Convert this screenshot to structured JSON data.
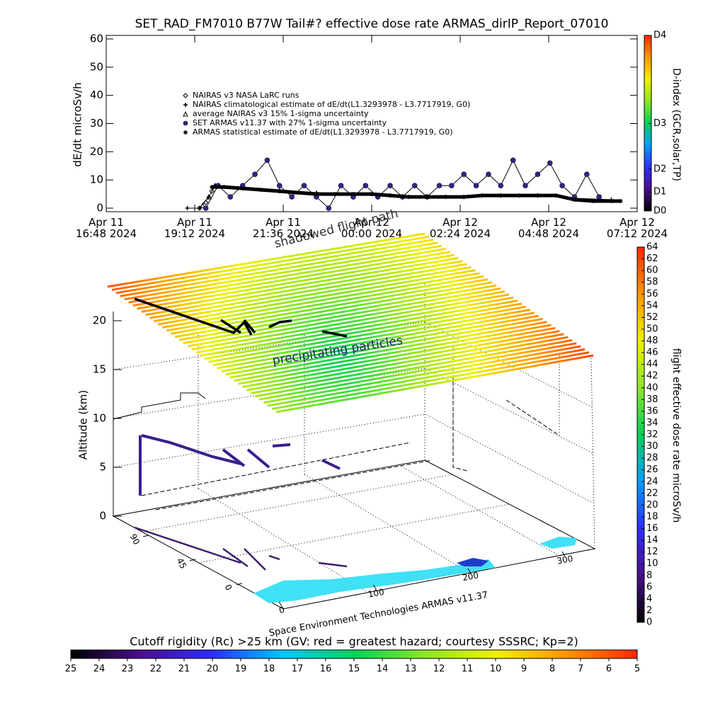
{
  "chart_data": [
    {
      "type": "dose-timeline",
      "title": "SET_RAD_FM7010  B77W Tail#? effective dose rate ARMAS_dirIP_Report_07010",
      "ylabel": "dE/dt microSv/h",
      "xlim": [
        "2024-04-11T16:48",
        "2024-04-12T07:12"
      ],
      "xticks": [
        {
          "value": "2024-04-11T16:48",
          "label": "Apr 11\n16:48 2024"
        },
        {
          "value": "2024-04-11T19:12",
          "label": "Apr 11\n19:12 2024"
        },
        {
          "value": "2024-04-11T21:36",
          "label": "Apr 11\n21:36 2024"
        },
        {
          "value": "2024-04-12T00:00",
          "label": "Apr 12\n00:00 2024"
        },
        {
          "value": "2024-04-12T02:24",
          "label": "Apr 12\n02:24 2024"
        },
        {
          "value": "2024-04-12T04:48",
          "label": "Apr 12\n04:48 2024"
        },
        {
          "value": "2024-04-12T07:12",
          "label": "Apr 12\n07:12 2024"
        }
      ],
      "ylim": [
        0,
        60
      ],
      "yticks": [
        0,
        10,
        20,
        30,
        40,
        50,
        60
      ],
      "series": [
        {
          "name": "NAIRAS v3 NASA LaRC runs",
          "marker": "diamond",
          "color": "#000000",
          "x": [
            "2024-04-11T19:20",
            "2024-04-11T19:30",
            "2024-04-11T19:40"
          ],
          "values": [
            0,
            2,
            6
          ]
        },
        {
          "name": "NAIRAS climatological estimate of dE/dt(L1.3293978 - L3.7717919, G0)",
          "marker": "plus",
          "color": "#000000",
          "line_width": 1,
          "x": [
            "2024-04-11T19:00",
            "2024-04-11T19:20",
            "2024-04-11T19:35",
            "2024-04-11T19:45",
            "2024-04-11T20:30",
            "2024-04-11T21:30",
            "2024-04-11T22:30",
            "2024-04-11T23:30",
            "2024-04-12T00:30",
            "2024-04-12T01:30",
            "2024-04-12T02:30",
            "2024-04-12T03:30",
            "2024-04-12T04:30",
            "2024-04-12T05:30",
            "2024-04-12T06:30"
          ],
          "values": [
            0,
            0,
            4,
            8,
            7.5,
            6.5,
            5.5,
            5,
            4.5,
            4,
            4,
            4.5,
            4.5,
            3.5,
            3
          ]
        },
        {
          "name": "average NAIRAS v3 15% 1-sigma uncertainty",
          "marker": "triangle",
          "color": "#000000",
          "x": [
            "2024-04-11T19:25",
            "2024-04-11T19:35",
            "2024-04-11T19:45"
          ],
          "values": [
            1,
            4,
            8
          ]
        },
        {
          "name": "SET ARMAS v11.37 with 27% 1-sigma uncertainty",
          "marker": "dot",
          "color": "#3a1f8c",
          "line_width": 1,
          "x": [
            "2024-04-11T19:30",
            "2024-04-11T19:50",
            "2024-04-11T20:10",
            "2024-04-11T20:30",
            "2024-04-11T20:50",
            "2024-04-11T21:10",
            "2024-04-11T21:30",
            "2024-04-11T21:50",
            "2024-04-11T22:10",
            "2024-04-11T22:30",
            "2024-04-11T22:50",
            "2024-04-11T23:10",
            "2024-04-11T23:30",
            "2024-04-11T23:50",
            "2024-04-12T00:10",
            "2024-04-12T00:30",
            "2024-04-12T00:50",
            "2024-04-12T01:10",
            "2024-04-12T01:30",
            "2024-04-12T01:50",
            "2024-04-12T02:10",
            "2024-04-12T02:30",
            "2024-04-12T02:50",
            "2024-04-12T03:10",
            "2024-04-12T03:30",
            "2024-04-12T03:50",
            "2024-04-12T04:10",
            "2024-04-12T04:30",
            "2024-04-12T04:50",
            "2024-04-12T05:10",
            "2024-04-12T05:30",
            "2024-04-12T05:50",
            "2024-04-12T06:10"
          ],
          "values": [
            0,
            8,
            4,
            8,
            12,
            17,
            8,
            4,
            8,
            4,
            0,
            8,
            4,
            8,
            4,
            8,
            4,
            8,
            4,
            8,
            8,
            12,
            8,
            12,
            8,
            17,
            8,
            12,
            16,
            8,
            4,
            12,
            4
          ]
        },
        {
          "name": "ARMAS statistical estimate of dE/dt(L1.3293978 - L3.7717919, G0)",
          "marker": "star",
          "color": "#000000",
          "line_width": 5,
          "x": [
            "2024-04-11T19:40",
            "2024-04-11T20:00",
            "2024-04-11T20:30",
            "2024-04-11T21:00",
            "2024-04-11T21:30",
            "2024-04-11T22:00",
            "2024-04-11T22:30",
            "2024-04-11T23:00",
            "2024-04-11T23:30",
            "2024-04-12T00:00",
            "2024-04-12T00:30",
            "2024-04-12T01:00",
            "2024-04-12T01:30",
            "2024-04-12T02:00",
            "2024-04-12T02:30",
            "2024-04-12T03:00",
            "2024-04-12T03:30",
            "2024-04-12T04:00",
            "2024-04-12T04:30",
            "2024-04-12T05:00",
            "2024-04-12T05:30",
            "2024-04-12T06:00",
            "2024-04-12T06:30",
            "2024-04-12T06:45"
          ],
          "values": [
            7.5,
            7.5,
            7,
            6.5,
            6,
            5.5,
            5,
            5,
            5,
            5,
            4.5,
            4,
            4,
            4,
            4,
            4.5,
            4.5,
            4.5,
            4.5,
            4.5,
            3,
            2.5,
            2.5,
            2.5
          ]
        }
      ],
      "colorbar": {
        "label": "D-index (GCR,solar,TP)",
        "lim": [
          0,
          60
        ],
        "ticks": [
          {
            "value": 0,
            "label": "D0"
          },
          {
            "value": 6.5,
            "label": "D1"
          },
          {
            "value": 14.3,
            "label": "D2"
          },
          {
            "value": 29.9,
            "label": "D3"
          },
          {
            "value": 60,
            "label": "D4"
          }
        ],
        "colormap": [
          "#000000",
          "#4b0f8c",
          "#2d2dff",
          "#00a0ff",
          "#00d25a",
          "#8ce628",
          "#f0f000",
          "#ff9600",
          "#ff2800"
        ]
      }
    },
    {
      "type": "surface3d",
      "zlabel": "Altitude (km)",
      "zlim": [
        0,
        20
      ],
      "zticks": [
        0,
        5,
        10,
        15,
        20
      ],
      "xlim": [
        0,
        360
      ],
      "xticks": [
        0,
        100,
        200,
        300
      ],
      "ylim": [
        0,
        90
      ],
      "yticks": [
        0,
        45,
        90
      ],
      "annotations": [
        "precipitating particles",
        "shadowed flight path"
      ],
      "credit": "Space Environment Technologies ARMAS v11.37",
      "colorbar": {
        "label": "flight effective dose rate microSv/h",
        "lim": [
          0,
          64
        ],
        "ticks": [
          0,
          2,
          4,
          6,
          8,
          10,
          12,
          14,
          16,
          18,
          20,
          22,
          24,
          26,
          28,
          30,
          32,
          34,
          36,
          38,
          40,
          42,
          44,
          46,
          48,
          50,
          52,
          54,
          56,
          58,
          60,
          62,
          64
        ],
        "colormap": [
          "#000000",
          "#4b0f8c",
          "#2d2dff",
          "#00a0ff",
          "#00d25a",
          "#8ce628",
          "#f0f000",
          "#ff9600",
          "#ff2800"
        ]
      }
    },
    {
      "type": "colorbar",
      "title": "Cutoff rigidity (Rc) >25 km (GV: red = greatest hazard; courtesy SSSRC; Kp=2)",
      "lim": [
        25,
        5
      ],
      "ticks": [
        25,
        24,
        23,
        22,
        21,
        20,
        19,
        18,
        17,
        16,
        15,
        14,
        13,
        12,
        11,
        10,
        9,
        8,
        7,
        6,
        5
      ],
      "colormap": [
        "#000000",
        "#4b0f8c",
        "#2d2dff",
        "#00c8ff",
        "#00d25a",
        "#8ce628",
        "#f0f000",
        "#ff9600",
        "#ff2800"
      ]
    }
  ]
}
